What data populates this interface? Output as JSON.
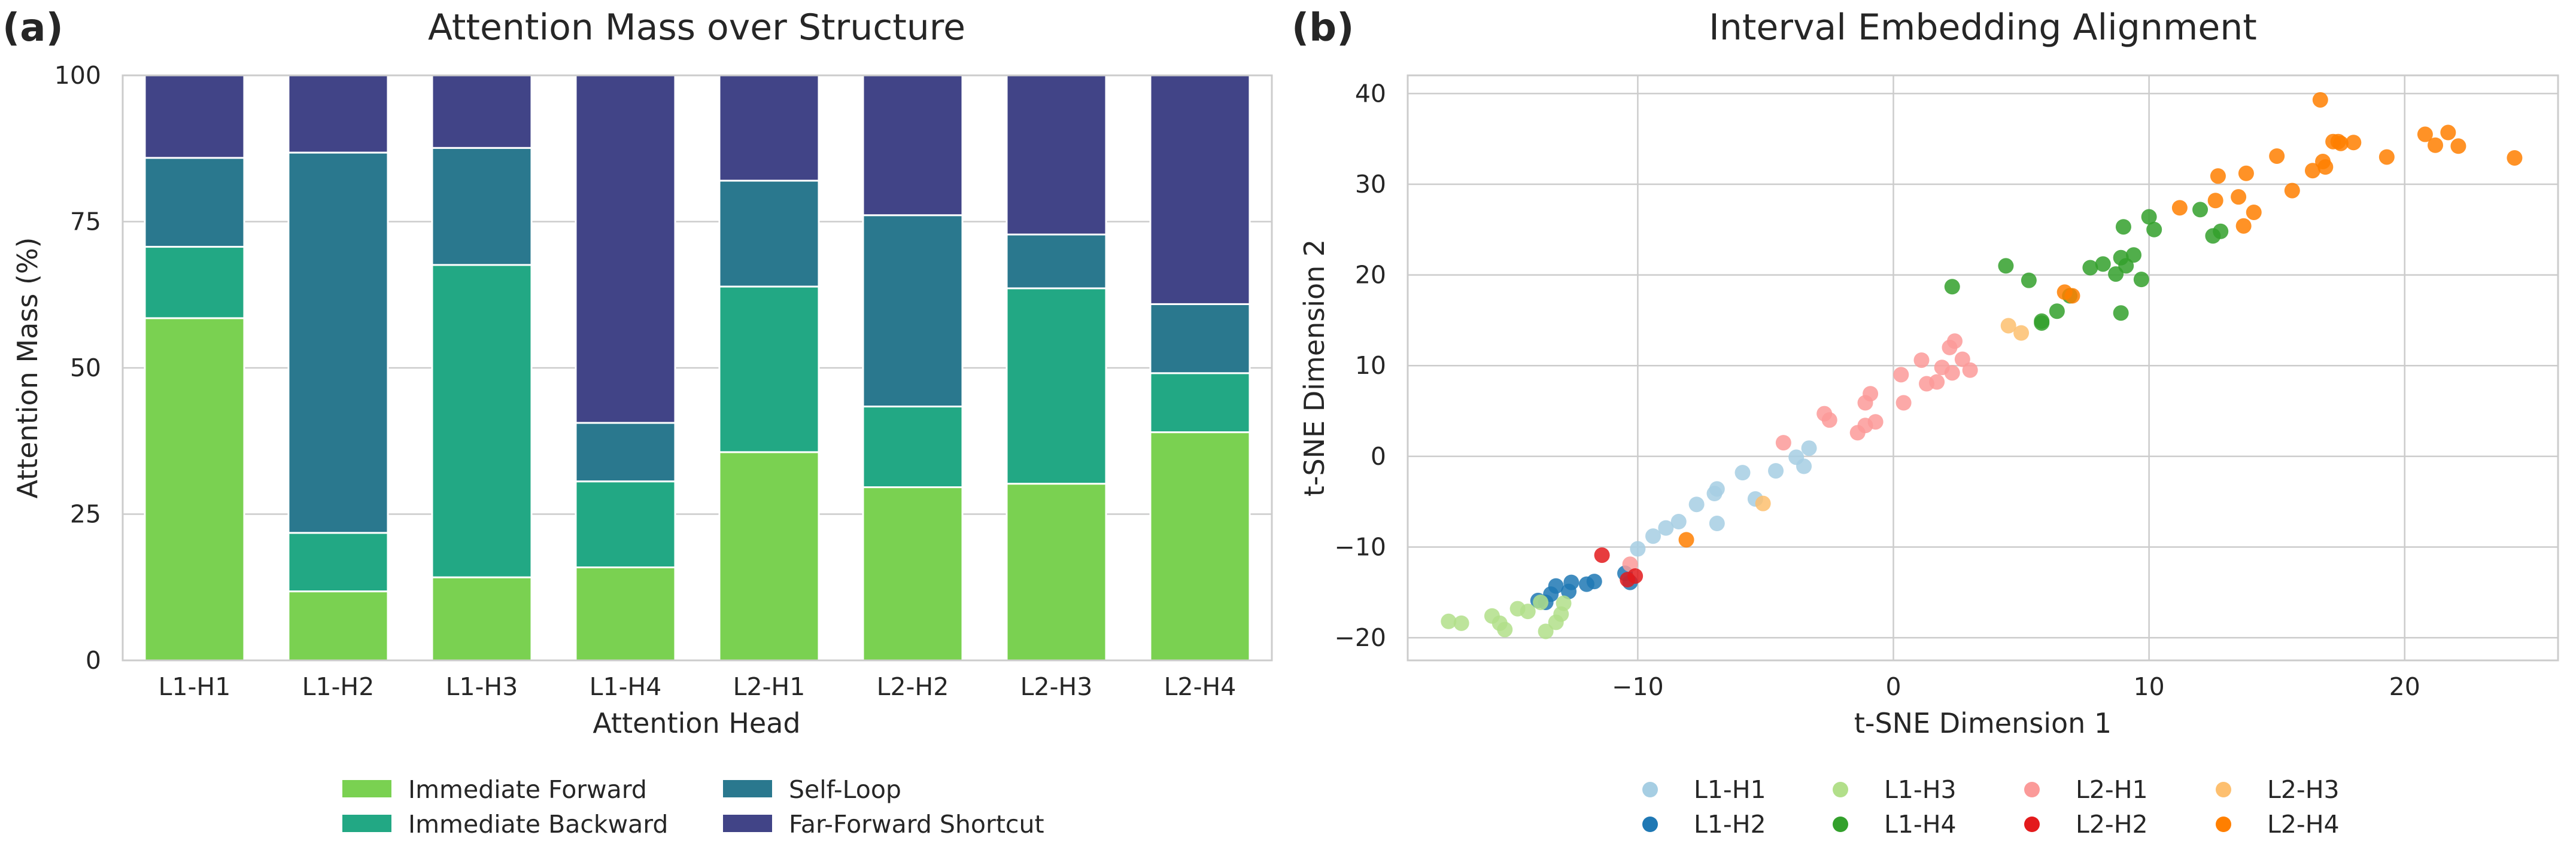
{
  "panel_a": {
    "letter": "(a)",
    "chart_data": {
      "type": "bar",
      "stacked": true,
      "title": "Attention Mass over Structure",
      "xlabel": "Attention Head",
      "ylabel": "Attention Mass (%)",
      "ylim": [
        0,
        100
      ],
      "yticks": [
        0,
        25,
        50,
        75,
        100
      ],
      "categories": [
        "L1-H1",
        "L1-H2",
        "L1-H3",
        "L1-H4",
        "L2-H1",
        "L2-H2",
        "L2-H3",
        "L2-H4"
      ],
      "series": [
        {
          "name": "Immediate Forward",
          "color": "#7ad151",
          "values": [
            58.5,
            11.8,
            14.2,
            15.9,
            35.6,
            29.6,
            30.2,
            39.0
          ]
        },
        {
          "name": "Immediate Backward",
          "color": "#22a884",
          "values": [
            12.2,
            10.0,
            53.4,
            14.7,
            28.3,
            13.8,
            33.4,
            10.1
          ]
        },
        {
          "name": "Self-Loop",
          "color": "#2a788e",
          "values": [
            15.2,
            65.0,
            20.0,
            10.0,
            18.1,
            32.7,
            9.2,
            11.8
          ]
        },
        {
          "name": "Far-Forward Shortcut",
          "color": "#414487",
          "values": [
            14.1,
            13.2,
            12.4,
            59.4,
            18.0,
            23.9,
            27.2,
            39.1
          ]
        }
      ],
      "legend_position": "bottom-center"
    }
  },
  "panel_b": {
    "letter": "(b)",
    "chart_data": {
      "type": "scatter",
      "title": "Interval Embedding Alignment",
      "xlabel": "t-SNE Dimension 1",
      "ylabel": "t-SNE Dimension 2",
      "xlim": [
        -19,
        26
      ],
      "ylim": [
        -22.5,
        42
      ],
      "xticks": [
        -10,
        0,
        10,
        20
      ],
      "xtick_labels": [
        "−10",
        "0",
        "10",
        "20"
      ],
      "yticks": [
        -20,
        -10,
        0,
        10,
        20,
        30,
        40
      ],
      "ytick_labels": [
        "−20",
        "−10",
        "0",
        "10",
        "20",
        "30",
        "40"
      ],
      "legend_position": "bottom-center",
      "series": [
        {
          "name": "L1-H1",
          "color": "#a6cee3",
          "points": [
            [
              -10,
              -10.2
            ],
            [
              -9.4,
              -8.8
            ],
            [
              -8.9,
              -7.9
            ],
            [
              -8.4,
              -7.2
            ],
            [
              -7.7,
              -5.3
            ],
            [
              -7,
              -4.1
            ],
            [
              -6.9,
              -7.4
            ],
            [
              -5.4,
              -4.7
            ],
            [
              -5.9,
              -1.8
            ],
            [
              -4.6,
              -1.6
            ],
            [
              -3.8,
              -0.1
            ],
            [
              -3.5,
              -1.1
            ],
            [
              -3.3,
              0.9
            ],
            [
              -6.9,
              -3.6
            ]
          ]
        },
        {
          "name": "L1-H2",
          "color": "#1f78b4",
          "points": [
            [
              -13.9,
              -15.9
            ],
            [
              -13.4,
              -15.2
            ],
            [
              -13.2,
              -14.3
            ],
            [
              -12.7,
              -14.9
            ],
            [
              -12.6,
              -13.9
            ],
            [
              -12,
              -14.1
            ],
            [
              -11.7,
              -13.8
            ],
            [
              -10.5,
              -12.9
            ],
            [
              -10.3,
              -13.9
            ],
            [
              -13.6,
              -16.1
            ]
          ]
        },
        {
          "name": "L1-H3",
          "color": "#b2df8a",
          "points": [
            [
              -17.4,
              -18.2
            ],
            [
              -16.9,
              -18.4
            ],
            [
              -15.7,
              -17.6
            ],
            [
              -15.4,
              -18.4
            ],
            [
              -15.2,
              -19.1
            ],
            [
              -14.7,
              -16.8
            ],
            [
              -14.3,
              -17.1
            ],
            [
              -13.8,
              -16.1
            ],
            [
              -13.6,
              -19.3
            ],
            [
              -13.2,
              -18.3
            ],
            [
              -13,
              -17.4
            ],
            [
              -12.9,
              -16.2
            ]
          ]
        },
        {
          "name": "L1-H4",
          "color": "#33a02c",
          "points": [
            [
              2.3,
              18.7
            ],
            [
              4.4,
              21
            ],
            [
              5.3,
              19.4
            ],
            [
              5.8,
              14.9
            ],
            [
              6.4,
              16
            ],
            [
              6.9,
              17.7
            ],
            [
              7.7,
              20.8
            ],
            [
              8.2,
              21.2
            ],
            [
              8.7,
              20.1
            ],
            [
              8.9,
              21.9
            ],
            [
              8.9,
              15.8
            ],
            [
              9,
              25.3
            ],
            [
              9.1,
              21
            ],
            [
              9.4,
              22.2
            ],
            [
              9.7,
              19.5
            ],
            [
              10,
              26.4
            ],
            [
              10.2,
              25
            ],
            [
              12,
              27.2
            ],
            [
              12.5,
              24.3
            ],
            [
              12.8,
              24.8
            ],
            [
              5.8,
              14.7
            ]
          ]
        },
        {
          "name": "L2-H1",
          "color": "#fb9a99",
          "points": [
            [
              -10.3,
              -11.9
            ],
            [
              -4.3,
              1.5
            ],
            [
              -2.7,
              4.7
            ],
            [
              -2.5,
              4
            ],
            [
              -1.4,
              2.6
            ],
            [
              -1.1,
              3.4
            ],
            [
              -1.1,
              5.9
            ],
            [
              -0.9,
              6.9
            ],
            [
              -0.7,
              3.8
            ],
            [
              0.3,
              9
            ],
            [
              0.4,
              5.9
            ],
            [
              1.1,
              10.6
            ],
            [
              1.3,
              8
            ],
            [
              1.7,
              8.2
            ],
            [
              1.9,
              9.8
            ],
            [
              2.2,
              12
            ],
            [
              2.3,
              9.2
            ],
            [
              2.4,
              12.7
            ],
            [
              2.7,
              10.7
            ],
            [
              3,
              9.5
            ]
          ]
        },
        {
          "name": "L2-H2",
          "color": "#e31a1c",
          "points": [
            [
              -11.4,
              -10.9
            ],
            [
              -10.4,
              -13.6
            ],
            [
              -10.1,
              -13.2
            ]
          ]
        },
        {
          "name": "L2-H3",
          "color": "#fdbf6f",
          "points": [
            [
              -5.1,
              -5.2
            ],
            [
              4.5,
              14.4
            ],
            [
              5,
              13.6
            ]
          ]
        },
        {
          "name": "L2-H4",
          "color": "#ff7f00",
          "points": [
            [
              -8.1,
              -9.2
            ],
            [
              6.7,
              18.1
            ],
            [
              7,
              17.7
            ],
            [
              11.2,
              27.4
            ],
            [
              12.6,
              28.2
            ],
            [
              12.7,
              30.9
            ],
            [
              13.5,
              28.6
            ],
            [
              13.7,
              25.4
            ],
            [
              13.8,
              31.2
            ],
            [
              14.1,
              26.9
            ],
            [
              15,
              33.1
            ],
            [
              15.6,
              29.3
            ],
            [
              16.4,
              31.5
            ],
            [
              16.8,
              32.5
            ],
            [
              16.9,
              31.9
            ],
            [
              16.7,
              39.3
            ],
            [
              17.2,
              34.7
            ],
            [
              17.4,
              34.7
            ],
            [
              17.5,
              34.5
            ],
            [
              18,
              34.6
            ],
            [
              19.3,
              33
            ],
            [
              20.8,
              35.5
            ],
            [
              21.2,
              34.3
            ],
            [
              21.7,
              35.7
            ],
            [
              22.1,
              34.2
            ],
            [
              24.3,
              32.9
            ]
          ]
        }
      ]
    }
  }
}
